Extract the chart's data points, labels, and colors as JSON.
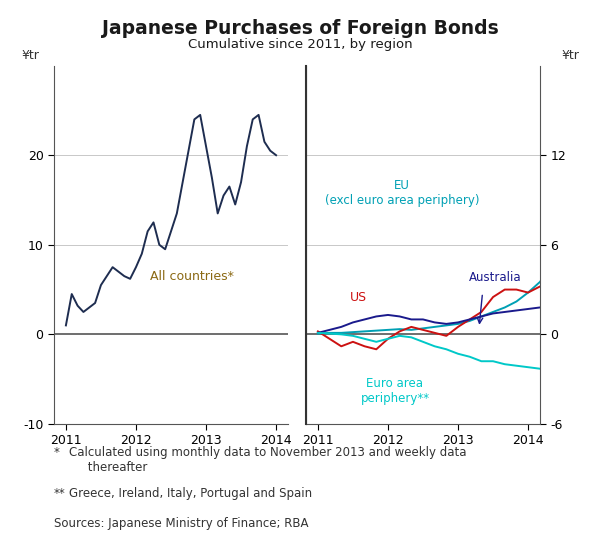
{
  "title": "Japanese Purchases of Foreign Bonds",
  "subtitle": "Cumulative since 2011, by region",
  "title_color": "#1a1a1a",
  "background_color": "#ffffff",
  "grid_color": "#c8c8c8",
  "left_ylim": [
    -10,
    30
  ],
  "left_yticks": [
    -10,
    0,
    10,
    20
  ],
  "right_ylim": [
    -6,
    18
  ],
  "right_yticks": [
    -6,
    0,
    6,
    12
  ],
  "left_ylabel": "¥tr",
  "right_ylabel": "¥tr",
  "all_countries_color": "#1e2d50",
  "eu_color": "#00a0b4",
  "us_color": "#cc1111",
  "australia_color": "#1a1a8c",
  "euro_periphery_color": "#00c8c8",
  "footnote1_bullet": "*",
  "footnote1_text": "Calculated using monthly data to November 2013 and weekly data\n     thereafter",
  "footnote2_bullet": "**",
  "footnote2_text": "Greece, Ireland, Italy, Portugal and Spain",
  "footnote3": "Sources: Japanese Ministry of Finance; RBA",
  "all_countries_label": "All countries*",
  "eu_label": "EU\n(excl euro area periphery)",
  "us_label": "US",
  "australia_label": "Australia",
  "euro_periphery_label": "Euro area\nperiphery**"
}
